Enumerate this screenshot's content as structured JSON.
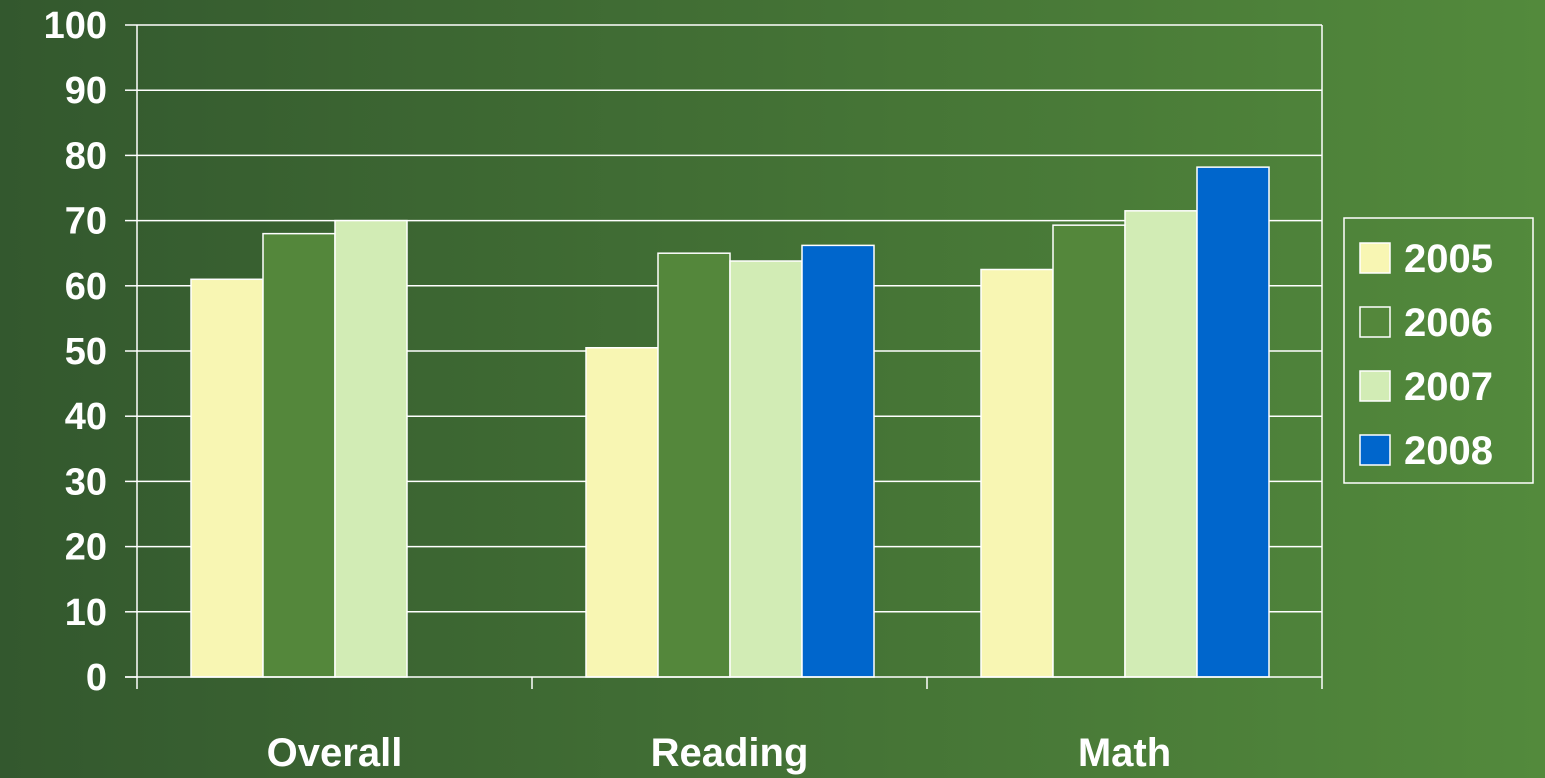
{
  "chart_data": {
    "type": "bar",
    "categories": [
      "Overall",
      "Reading",
      "Math"
    ],
    "series": [
      {
        "name": "2005",
        "values": [
          61,
          50.5,
          62.5
        ],
        "color": "#f8f6b3"
      },
      {
        "name": "2006",
        "values": [
          68,
          65,
          69.3
        ],
        "color": "#54873b"
      },
      {
        "name": "2007",
        "values": [
          70,
          63.8,
          71.5
        ],
        "color": "#d2ecb5"
      },
      {
        "name": "2008",
        "values": [
          null,
          66.2,
          78.2
        ],
        "color": "#0066cc"
      }
    ],
    "y_ticks": [
      "0",
      "10",
      "20",
      "30",
      "40",
      "50",
      "60",
      "70",
      "80",
      "90",
      "100"
    ],
    "ylim": [
      0,
      100
    ],
    "title": "",
    "xlabel": "",
    "ylabel": "",
    "grid": true,
    "legend_position": "right",
    "background_gradient": [
      "#33582e",
      "#538a3c"
    ],
    "gridline_color": "#ffffff"
  }
}
